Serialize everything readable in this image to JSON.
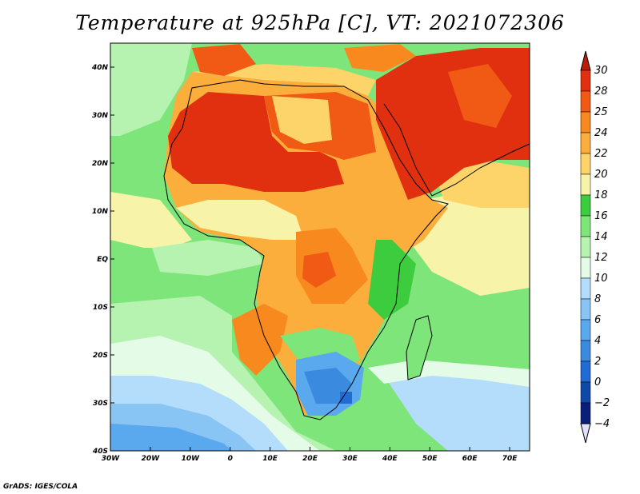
{
  "title": "Temperature at 925hPa [C], VT: 2021072306",
  "credit": "GrADS: IGES/COLA",
  "map": {
    "lon_range": [
      -30,
      75
    ],
    "lat_range": [
      -40,
      45
    ],
    "x_ticks": [
      "30W",
      "20W",
      "10W",
      "0",
      "10E",
      "20E",
      "30E",
      "40E",
      "50E",
      "60E",
      "70E"
    ],
    "y_ticks": [
      "40S",
      "30S",
      "20S",
      "10S",
      "EQ",
      "10N",
      "20N",
      "30N",
      "40N"
    ],
    "x_tick_values": [
      -30,
      -20,
      -10,
      0,
      10,
      20,
      30,
      40,
      50,
      60,
      70
    ],
    "y_tick_values": [
      -40,
      -30,
      -20,
      -10,
      0,
      10,
      20,
      30,
      40
    ]
  },
  "colorbar": {
    "labels": [
      "30",
      "28",
      "25",
      "24",
      "22",
      "20",
      "18",
      "16",
      "14",
      "12",
      "10",
      "8",
      "6",
      "4",
      "2",
      "0",
      "-2",
      "-4"
    ],
    "colors": [
      "#e03010",
      "#f05a14",
      "#f7891e",
      "#fbae3c",
      "#fdd46a",
      "#f7f3a8",
      "#3dcc3d",
      "#7ee57a",
      "#b6f3b0",
      "#e4fbe8",
      "#b4dcfb",
      "#88c4f4",
      "#5aa8ed",
      "#3a8ae0",
      "#226ad4",
      "#1048a8",
      "#0a1e7a"
    ],
    "top_arrow_color": "#c01a08",
    "bottom_arrow_color": "#e0e0fa"
  }
}
